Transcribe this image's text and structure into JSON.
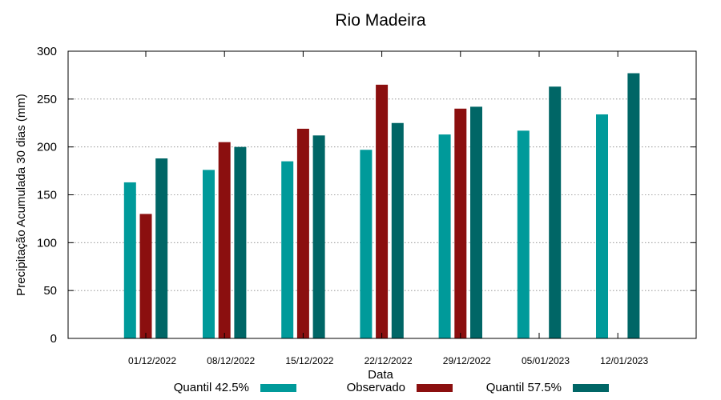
{
  "chart_data": {
    "type": "bar",
    "title": "Rio Madeira",
    "xlabel": "Data",
    "ylabel": "Precipitação Acumulada 30 dias (mm)",
    "ylim": [
      0,
      300
    ],
    "yticks": [
      0,
      50,
      100,
      150,
      200,
      250,
      300
    ],
    "grid": true,
    "legend_position": "bottom",
    "categories": [
      "01/12/2022",
      "08/12/2022",
      "15/12/2022",
      "22/12/2022",
      "29/12/2022",
      "05/01/2023",
      "12/01/2023"
    ],
    "series": [
      {
        "name": "Quantil 42.5%",
        "color": "#009a9a",
        "values": [
          163,
          176,
          185,
          197,
          213,
          217,
          234
        ]
      },
      {
        "name": "Observado",
        "color": "#8b0f0f",
        "values": [
          130,
          205,
          219,
          265,
          240,
          null,
          null
        ]
      },
      {
        "name": "Quantil 57.5%",
        "color": "#006666",
        "values": [
          188,
          200,
          212,
          225,
          242,
          263,
          277
        ]
      }
    ]
  }
}
